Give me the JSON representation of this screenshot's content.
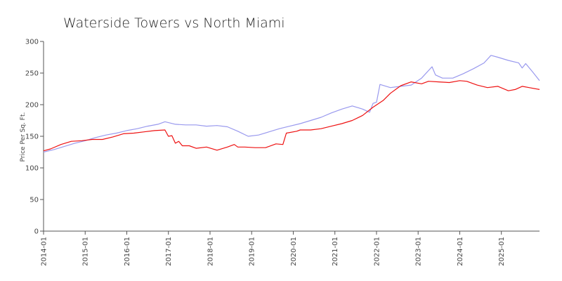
{
  "chart_data": {
    "type": "line",
    "title": "Waterside Towers vs North Miami",
    "xlabel": "",
    "ylabel": "Price Per Sq. Ft.",
    "ylim": [
      0,
      300
    ],
    "yticks": [
      0,
      50,
      100,
      150,
      200,
      250,
      300
    ],
    "xticks": [
      "2014-01",
      "2015-01",
      "2016-01",
      "2017-01",
      "2018-01",
      "2019-01",
      "2020-01",
      "2021-01",
      "2022-01",
      "2023-01",
      "2024-01",
      "2025-01"
    ],
    "x_range": [
      "2014-01",
      "2025-12"
    ],
    "grid": false,
    "legend": "none",
    "series": [
      {
        "color": "#9999ee",
        "points": [
          [
            "2014-01",
            125
          ],
          [
            "2014-04",
            129
          ],
          [
            "2014-07",
            134
          ],
          [
            "2014-10",
            139
          ],
          [
            "2015-01",
            143
          ],
          [
            "2015-04",
            148
          ],
          [
            "2015-07",
            152
          ],
          [
            "2015-10",
            155
          ],
          [
            "2016-01",
            159
          ],
          [
            "2016-04",
            162
          ],
          [
            "2016-07",
            166
          ],
          [
            "2016-10",
            169
          ],
          [
            "2016-12",
            173
          ],
          [
            "2017-03",
            169
          ],
          [
            "2017-06",
            168
          ],
          [
            "2017-09",
            168
          ],
          [
            "2017-12",
            166
          ],
          [
            "2018-03",
            167
          ],
          [
            "2018-06",
            165
          ],
          [
            "2018-09",
            158
          ],
          [
            "2018-12",
            150
          ],
          [
            "2019-03",
            152
          ],
          [
            "2019-06",
            157
          ],
          [
            "2019-09",
            162
          ],
          [
            "2019-12",
            166
          ],
          [
            "2020-03",
            170
          ],
          [
            "2020-06",
            175
          ],
          [
            "2020-09",
            180
          ],
          [
            "2020-12",
            187
          ],
          [
            "2021-03",
            193
          ],
          [
            "2021-06",
            198
          ],
          [
            "2021-09",
            193
          ],
          [
            "2021-11",
            188
          ],
          [
            "2021-12",
            202
          ],
          [
            "2022-01",
            204
          ],
          [
            "2022-02",
            232
          ],
          [
            "2022-05",
            227
          ],
          [
            "2022-08",
            229
          ],
          [
            "2022-11",
            231
          ],
          [
            "2023-02",
            242
          ],
          [
            "2023-05",
            260
          ],
          [
            "2023-06",
            247
          ],
          [
            "2023-08",
            242
          ],
          [
            "2023-11",
            242
          ],
          [
            "2024-02",
            249
          ],
          [
            "2024-05",
            257
          ],
          [
            "2024-08",
            266
          ],
          [
            "2024-10",
            278
          ],
          [
            "2024-12",
            275
          ],
          [
            "2025-03",
            270
          ],
          [
            "2025-06",
            266
          ],
          [
            "2025-07",
            258
          ],
          [
            "2025-08",
            265
          ],
          [
            "2025-10",
            252
          ],
          [
            "2025-12",
            238
          ]
        ]
      },
      {
        "color": "#ee1111",
        "points": [
          [
            "2014-01",
            127
          ],
          [
            "2014-03",
            130
          ],
          [
            "2014-06",
            137
          ],
          [
            "2014-09",
            142
          ],
          [
            "2014-12",
            143
          ],
          [
            "2015-03",
            145
          ],
          [
            "2015-06",
            145
          ],
          [
            "2015-09",
            149
          ],
          [
            "2015-12",
            154
          ],
          [
            "2016-03",
            155
          ],
          [
            "2016-06",
            157
          ],
          [
            "2016-09",
            159
          ],
          [
            "2016-12",
            160
          ],
          [
            "2017-01",
            150
          ],
          [
            "2017-02",
            151
          ],
          [
            "2017-03",
            139
          ],
          [
            "2017-04",
            142
          ],
          [
            "2017-05",
            135
          ],
          [
            "2017-07",
            135
          ],
          [
            "2017-09",
            131
          ],
          [
            "2017-12",
            133
          ],
          [
            "2018-03",
            128
          ],
          [
            "2018-06",
            133
          ],
          [
            "2018-08",
            137
          ],
          [
            "2018-09",
            133
          ],
          [
            "2018-11",
            133
          ],
          [
            "2019-02",
            132
          ],
          [
            "2019-05",
            132
          ],
          [
            "2019-08",
            138
          ],
          [
            "2019-10",
            137
          ],
          [
            "2019-11",
            155
          ],
          [
            "2020-02",
            158
          ],
          [
            "2020-03",
            160
          ],
          [
            "2020-06",
            160
          ],
          [
            "2020-09",
            162
          ],
          [
            "2020-12",
            166
          ],
          [
            "2021-03",
            170
          ],
          [
            "2021-06",
            175
          ],
          [
            "2021-09",
            183
          ],
          [
            "2021-12",
            196
          ],
          [
            "2022-03",
            207
          ],
          [
            "2022-05",
            218
          ],
          [
            "2022-08",
            230
          ],
          [
            "2022-11",
            236
          ],
          [
            "2023-02",
            233
          ],
          [
            "2023-04",
            237
          ],
          [
            "2023-07",
            236
          ],
          [
            "2023-10",
            235
          ],
          [
            "2024-01",
            238
          ],
          [
            "2024-03",
            237
          ],
          [
            "2024-06",
            231
          ],
          [
            "2024-09",
            227
          ],
          [
            "2024-12",
            229
          ],
          [
            "2025-03",
            222
          ],
          [
            "2025-05",
            224
          ],
          [
            "2025-07",
            229
          ],
          [
            "2025-09",
            227
          ],
          [
            "2025-12",
            224
          ]
        ]
      }
    ]
  }
}
